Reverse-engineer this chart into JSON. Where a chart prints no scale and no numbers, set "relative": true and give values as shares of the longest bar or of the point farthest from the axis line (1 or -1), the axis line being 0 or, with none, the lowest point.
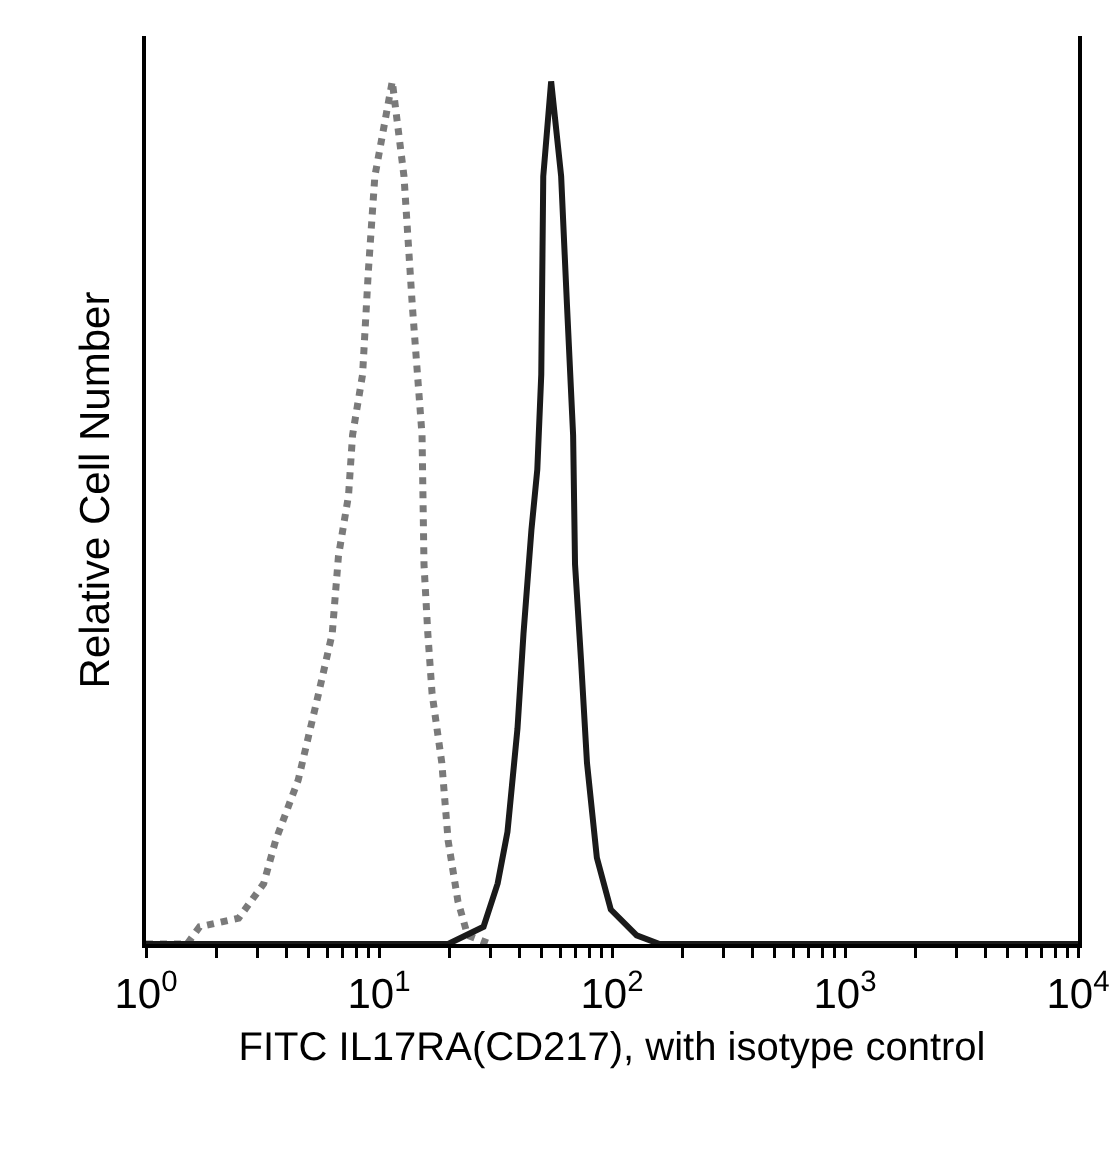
{
  "chart_data": {
    "type": "line",
    "relative": true,
    "log": "x",
    "grid": false,
    "tick_labels": "x",
    "xlabel": "FITC IL17RA(CD217), with isotype control",
    "ylabel": "Relative Cell Number",
    "xlim": [
      1,
      10000
    ],
    "xticks": [
      {
        "value": 1,
        "label": "10$^{0}$"
      },
      {
        "value": 2,
        "label": null
      },
      {
        "value": 3,
        "label": null
      },
      {
        "value": 4,
        "label": null
      },
      {
        "value": 5,
        "label": null
      },
      {
        "value": 6,
        "label": null
      },
      {
        "value": 7,
        "label": null
      },
      {
        "value": 8,
        "label": null
      },
      {
        "value": 9,
        "label": null
      },
      {
        "value": 10,
        "label": "10$^{1}$"
      },
      {
        "value": 20,
        "label": null
      },
      {
        "value": 30,
        "label": null
      },
      {
        "value": 40,
        "label": null
      },
      {
        "value": 50,
        "label": null
      },
      {
        "value": 60,
        "label": null
      },
      {
        "value": 70,
        "label": null
      },
      {
        "value": 80,
        "label": null
      },
      {
        "value": 90,
        "label": null
      },
      {
        "value": 100,
        "label": "10$^{2}$"
      },
      {
        "value": 200,
        "label": null
      },
      {
        "value": 300,
        "label": null
      },
      {
        "value": 400,
        "label": null
      },
      {
        "value": 500,
        "label": null
      },
      {
        "value": 600,
        "label": null
      },
      {
        "value": 700,
        "label": null
      },
      {
        "value": 800,
        "label": null
      },
      {
        "value": 900,
        "label": null
      },
      {
        "value": 1000,
        "label": "10$^{3}$"
      },
      {
        "value": 2000,
        "label": null
      },
      {
        "value": 3000,
        "label": null
      },
      {
        "value": 4000,
        "label": null
      },
      {
        "value": 5000,
        "label": null
      },
      {
        "value": 6000,
        "label": null
      },
      {
        "value": 7000,
        "label": null
      },
      {
        "value": 8000,
        "label": null
      },
      {
        "value": 9000,
        "label": null
      },
      {
        "value": 10000,
        "label": "10$^{4}$"
      }
    ],
    "series": [
      {
        "color": "#7a7a7a",
        "line_style": "dotted",
        "x": [
          1,
          1.5,
          1.7,
          2.5,
          3.2,
          3.6,
          4.5,
          5.5,
          6.3,
          6.7,
          7.4,
          7.7,
          8.5,
          9.0,
          9.6,
          11.4,
          12.8,
          13.9,
          15.3,
          15.6,
          16.2,
          16.9,
          18.6,
          19.8,
          21.8,
          24.0,
          30
        ],
        "values": [
          0,
          0,
          0.02,
          0.03,
          0.07,
          0.12,
          0.19,
          0.29,
          0.36,
          0.45,
          0.52,
          0.59,
          0.66,
          0.78,
          0.89,
          1.0,
          0.89,
          0.74,
          0.59,
          0.44,
          0.36,
          0.29,
          0.21,
          0.12,
          0.05,
          0.01,
          0
        ]
      },
      {
        "color": "#1a1a1a",
        "line_style": "solid",
        "x": [
          1,
          19.8,
          28.1,
          32.3,
          35.6,
          39.3,
          41.7,
          45.1,
          47.8,
          49.7,
          50.7,
          54.8,
          60.5,
          64.1,
          68.1,
          69.4,
          73.6,
          78.1,
          86.1,
          98.8,
          127.6,
          160,
          10000
        ],
        "values": [
          0,
          0,
          0.02,
          0.07,
          0.13,
          0.25,
          0.36,
          0.48,
          0.55,
          0.66,
          0.89,
          1.0,
          0.89,
          0.74,
          0.59,
          0.44,
          0.33,
          0.21,
          0.1,
          0.04,
          0.01,
          0,
          0
        ]
      }
    ]
  }
}
